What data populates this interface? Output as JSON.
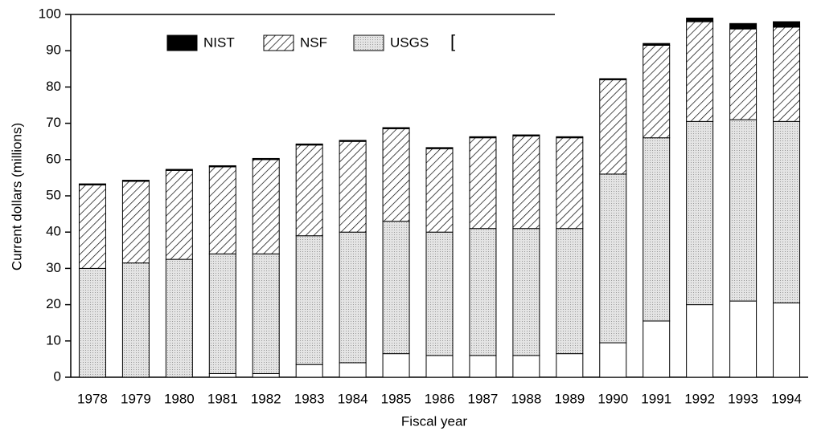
{
  "chart_data": {
    "type": "stacked_bar",
    "x_label": "Fiscal year",
    "y_label": "Current dollars (millions)",
    "categories": [
      "1978",
      "1979",
      "1980",
      "1981",
      "1982",
      "1983",
      "1984",
      "1985",
      "1986",
      "1987",
      "1988",
      "1989",
      "1990",
      "1991",
      "1992",
      "1993",
      "1994"
    ],
    "series": [
      {
        "color": "#ffffff",
        "values": [
          0,
          0,
          0,
          1,
          1,
          3.5,
          4,
          6.5,
          6,
          6,
          6,
          6.5,
          9.5,
          15.5,
          20,
          21,
          20.5
        ]
      },
      {
        "name": "USGS",
        "color": "#e4e4e4",
        "pattern": "dots",
        "values": [
          30,
          31.5,
          32.5,
          33,
          33,
          35.5,
          36,
          36.5,
          34,
          35,
          35,
          34.5,
          46.5,
          50.5,
          50.5,
          50,
          50
        ]
      },
      {
        "name": "NSF",
        "color": "#ffffff",
        "pattern": "hatch",
        "values": [
          23,
          22.5,
          24.5,
          24,
          26,
          25,
          25,
          25.5,
          23,
          25,
          25.5,
          25,
          26,
          25.5,
          27.5,
          25,
          26
        ]
      },
      {
        "name": "NIST",
        "color": "#000000",
        "values": [
          0.3,
          0.3,
          0.3,
          0.3,
          0.3,
          0.3,
          0.3,
          0.3,
          0.3,
          0.3,
          0.3,
          0.3,
          0.3,
          0.5,
          1,
          1.5,
          1.5
        ]
      }
    ],
    "ylim": [
      0,
      100
    ],
    "yticks": [
      0,
      10,
      20,
      30,
      40,
      50,
      60,
      70,
      80,
      90,
      100
    ]
  }
}
